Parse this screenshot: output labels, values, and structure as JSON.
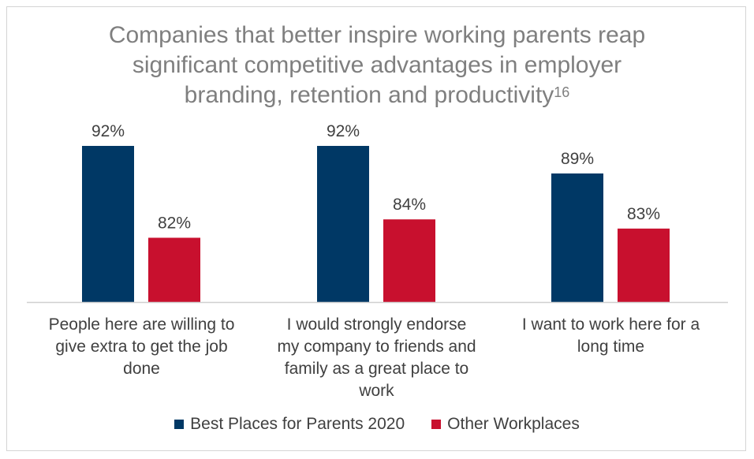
{
  "chart_data": {
    "type": "bar",
    "title_lines": [
      "Companies that better inspire working parents reap",
      "significant competitive advantages in employer",
      "branding, retention and productivity"
    ],
    "title_superscript": "16",
    "categories": [
      [
        "People here are willing to",
        "give extra to get the job",
        "done"
      ],
      [
        "I would strongly endorse",
        "my company to friends and",
        "family as a great place to",
        "work"
      ],
      [
        "I want to work here for a",
        "long time"
      ]
    ],
    "series": [
      {
        "name": "Best Places for Parents 2020",
        "color": "#003865",
        "values": [
          92,
          92,
          89
        ],
        "labels": [
          "92%",
          "92%",
          "89%"
        ]
      },
      {
        "name": "Other Workplaces",
        "color": "#c8102e",
        "values": [
          82,
          84,
          83
        ],
        "labels": [
          "82%",
          "84%",
          "83%"
        ]
      }
    ],
    "value_axis": {
      "visible": false,
      "min": 75,
      "max": 92
    },
    "gridlines": false,
    "legend_position": "bottom"
  }
}
